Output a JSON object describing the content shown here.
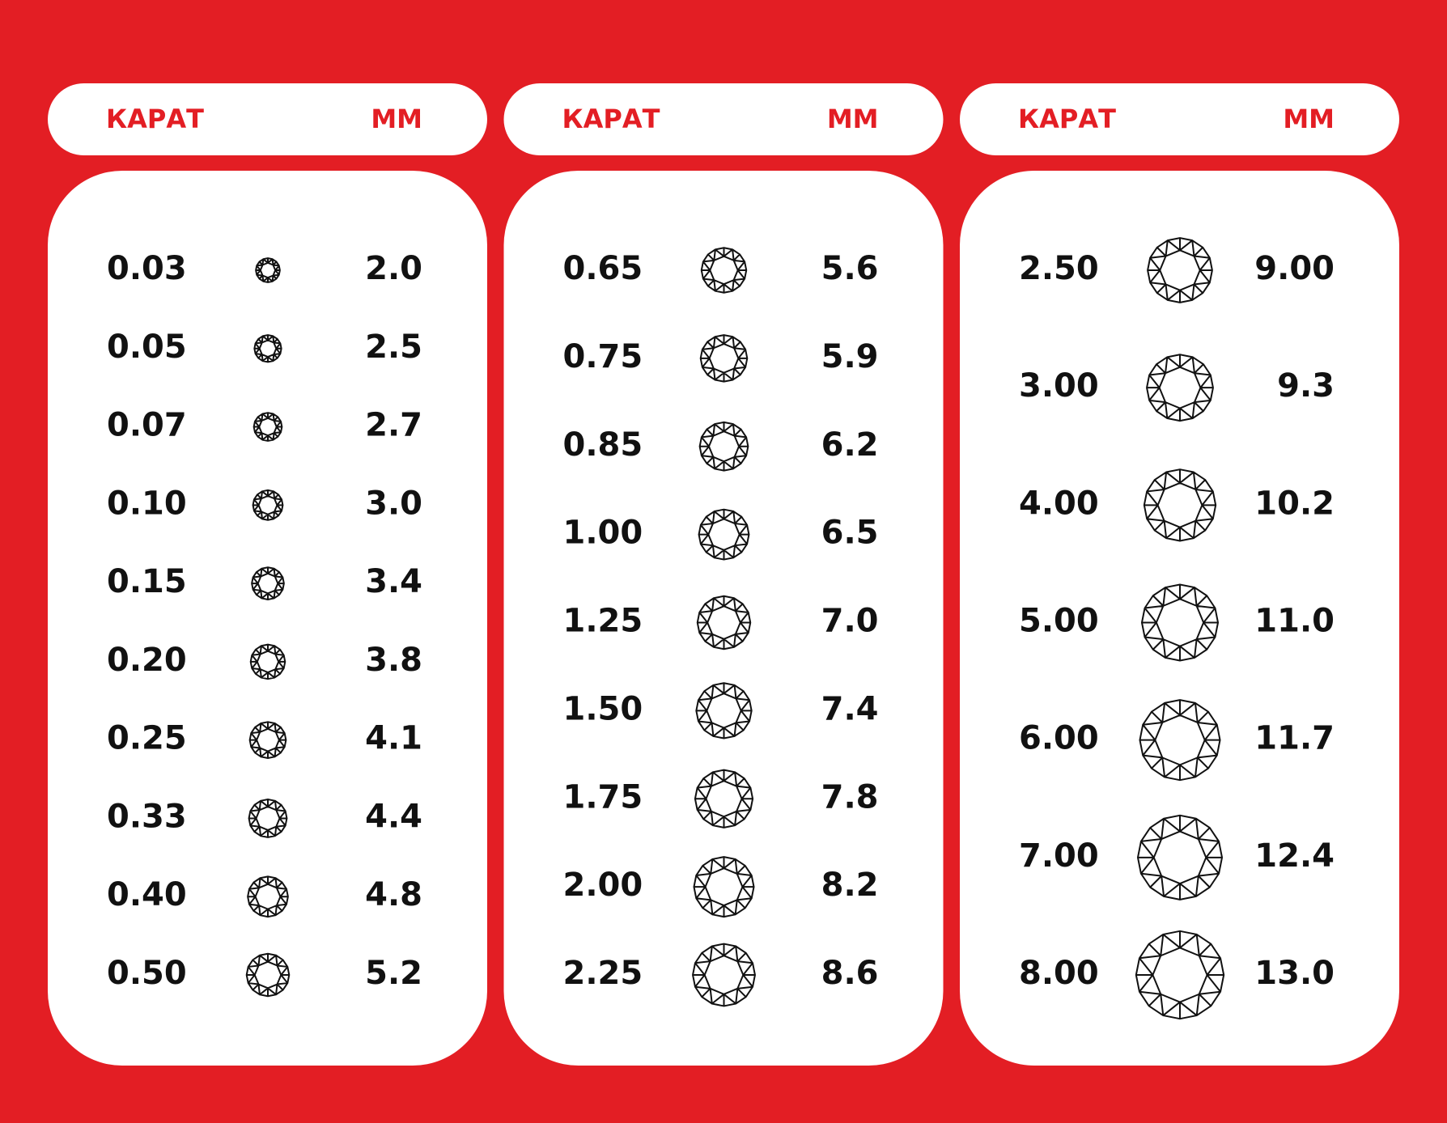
{
  "columns": [
    {
      "header": {
        "carat": "КАРАТ",
        "mm": "ММ"
      },
      "rows": [
        [
          "0.03",
          "2.0"
        ],
        [
          "0.05",
          "2.5"
        ],
        [
          "0.07",
          "2.7"
        ],
        [
          "0.10",
          "3.0"
        ],
        [
          "0.15",
          "3.4"
        ],
        [
          "0.20",
          "3.8"
        ],
        [
          "0.25",
          "4.1"
        ],
        [
          "0.33",
          "4.4"
        ],
        [
          "0.40",
          "4.8"
        ],
        [
          "0.50",
          "5.2"
        ]
      ]
    },
    {
      "header": {
        "carat": "КАРАТ",
        "mm": "ММ"
      },
      "rows": [
        [
          "0.65",
          "5.6"
        ],
        [
          "0.75",
          "5.9"
        ],
        [
          "0.85",
          "6.2"
        ],
        [
          "1.00",
          "6.5"
        ],
        [
          "1.25",
          "7.0"
        ],
        [
          "1.50",
          "7.4"
        ],
        [
          "1.75",
          "7.8"
        ],
        [
          "2.00",
          "8.2"
        ],
        [
          "2.25",
          "8.6"
        ]
      ]
    },
    {
      "header": {
        "carat": "КАРАТ",
        "mm": "ММ"
      },
      "rows": [
        [
          "2.50",
          "9.00"
        ],
        [
          "3.00",
          "9.3"
        ],
        [
          "4.00",
          "10.2"
        ],
        [
          "5.00",
          "11.0"
        ],
        [
          "6.00",
          "11.7"
        ],
        [
          "7.00",
          "12.4"
        ],
        [
          "8.00",
          "13.0"
        ]
      ]
    }
  ]
}
